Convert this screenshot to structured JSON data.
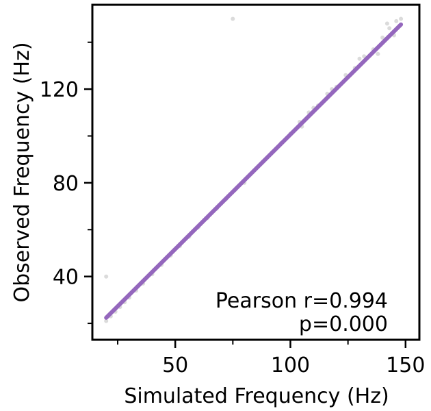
{
  "chart_data": {
    "type": "scatter",
    "xlabel": "Simulated Frequency (Hz)",
    "ylabel": "Observed Frequency (Hz)",
    "xlim": [
      14,
      156
    ],
    "ylim": [
      13,
      156
    ],
    "x_ticks_major": [
      50,
      100,
      150
    ],
    "x_ticks_minor": [
      25,
      75,
      125
    ],
    "y_ticks_major": [
      40,
      80,
      120
    ],
    "y_ticks_minor": [
      20,
      60,
      100,
      140
    ],
    "grid": false,
    "legend": "none",
    "points": {
      "x": [
        20,
        22,
        24,
        26,
        28,
        30,
        33,
        36,
        40,
        44,
        48,
        52,
        56,
        60,
        64,
        68,
        72,
        76,
        80,
        84,
        88,
        92,
        96,
        100,
        104,
        108,
        112,
        116,
        120,
        124,
        128,
        132,
        136,
        140,
        143,
        146,
        148,
        20,
        105,
        110,
        118,
        130,
        138,
        145,
        142,
        75
      ],
      "y": [
        21,
        23,
        25,
        27,
        29,
        31,
        34,
        37,
        41,
        45,
        49,
        53,
        57,
        61,
        65,
        69,
        73,
        77,
        80,
        85,
        89,
        93,
        97,
        101,
        106,
        110,
        113,
        118,
        121,
        126,
        129,
        134,
        137,
        142,
        146,
        149,
        150,
        40,
        104,
        112,
        120,
        133,
        135,
        143,
        148,
        150
      ],
      "color": "#cfcfcf"
    },
    "fit_line": {
      "x": [
        20,
        148
      ],
      "y": [
        22.4,
        147.6
      ],
      "color": "#9467bd"
    },
    "annotations": [
      "Pearson r=0.994",
      "p=0.000"
    ]
  }
}
